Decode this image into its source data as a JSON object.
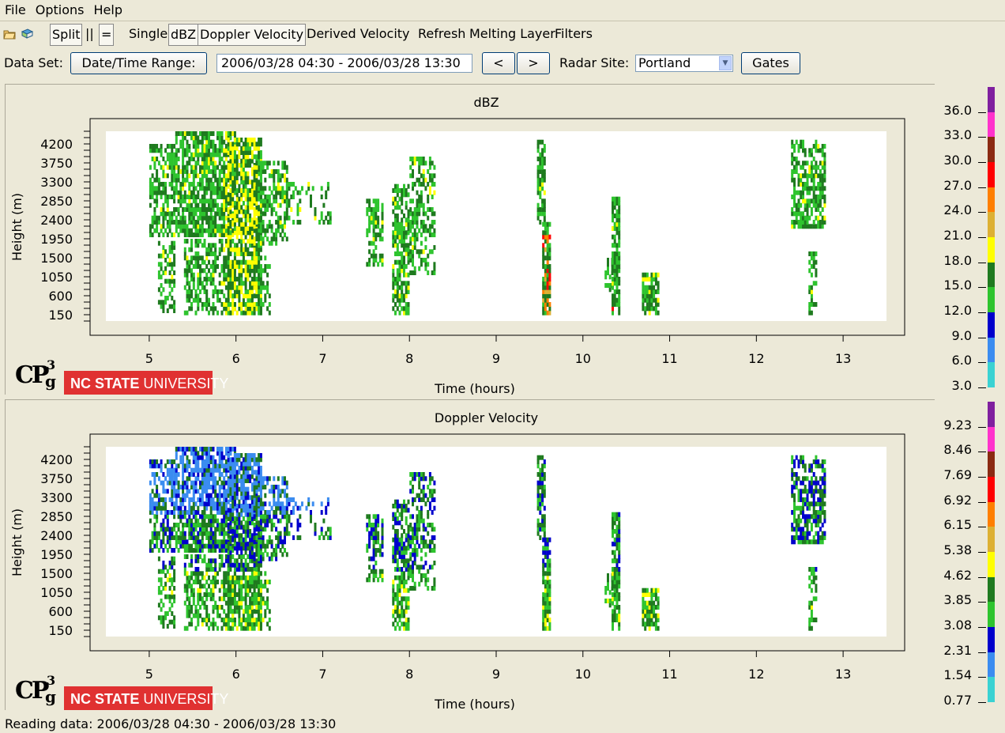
{
  "menu": [
    "File",
    "Options",
    "Help"
  ],
  "toolbar": {
    "icons": [
      "open-folder-icon",
      "book-icon"
    ],
    "split": "Split",
    "parallel": "||",
    "equals": "=",
    "single": "Single",
    "dbz": "dBZ",
    "doppler": "Doppler Velocity",
    "derived": "Derived Velocity",
    "refresh": "Refresh",
    "melting": "Melting Layer",
    "filters": "Filters"
  },
  "dataset": {
    "label": "Data Set:",
    "date_range_button": "Date/Time Range:",
    "range_value": "2006/03/28 04:30 - 2006/03/28 13:30",
    "prev": "<",
    "next": ">",
    "radar_label": "Radar Site:",
    "radar_value": "Portland",
    "gates": "Gates"
  },
  "logo": {
    "text": "CP",
    "exp": "3",
    "sub": "g",
    "university_bold": "NC STATE",
    "university_rest": " UNIVERSITY"
  },
  "status": "Reading data: 2006/03/28 04:30 - 2006/03/28 13:30",
  "chart_data": [
    {
      "type": "heatmap",
      "title": "dBZ",
      "xlabel": "Time (hours)",
      "ylabel": "Height (m)",
      "x_ticks": [
        5,
        6,
        7,
        8,
        9,
        10,
        11,
        12,
        13
      ],
      "y_ticks": [
        150,
        600,
        1050,
        1500,
        1950,
        2400,
        2850,
        3300,
        3750,
        4200
      ],
      "xlim": [
        4.5,
        13.5
      ],
      "ylim": [
        0,
        4500
      ],
      "colorbar_labels": [
        "36.0",
        "33.0",
        "30.0",
        "27.0",
        "24.0",
        "21.0",
        "18.0",
        "15.0",
        "12.0",
        "9.0",
        "6.0",
        "3.0"
      ],
      "colorbar_colors": [
        "#7f1f9f",
        "#ff33cc",
        "#8b2a12",
        "#ff0000",
        "#ff7f00",
        "#ddb033",
        "#ffff00",
        "#1f7a1f",
        "#2ec42e",
        "#0000cc",
        "#3b8cf0",
        "#3ad2d2"
      ]
    },
    {
      "type": "heatmap",
      "title": "Doppler Velocity",
      "xlabel": "Time (hours)",
      "ylabel": "Height (m)",
      "x_ticks": [
        5,
        6,
        7,
        8,
        9,
        10,
        11,
        12,
        13
      ],
      "y_ticks": [
        150,
        600,
        1050,
        1500,
        1950,
        2400,
        2850,
        3300,
        3750,
        4200
      ],
      "xlim": [
        4.5,
        13.5
      ],
      "ylim": [
        0,
        4500
      ],
      "colorbar_labels": [
        "9.23",
        "8.46",
        "7.69",
        "6.92",
        "6.15",
        "5.38",
        "4.62",
        "3.85",
        "3.08",
        "2.31",
        "1.54",
        "0.77"
      ],
      "colorbar_colors": [
        "#7f1f9f",
        "#ff33cc",
        "#8b2a12",
        "#ff0000",
        "#ff7f00",
        "#ddb033",
        "#ffff00",
        "#1f7a1f",
        "#2ec42e",
        "#0000cc",
        "#3b8cf0",
        "#3ad2d2"
      ]
    }
  ]
}
